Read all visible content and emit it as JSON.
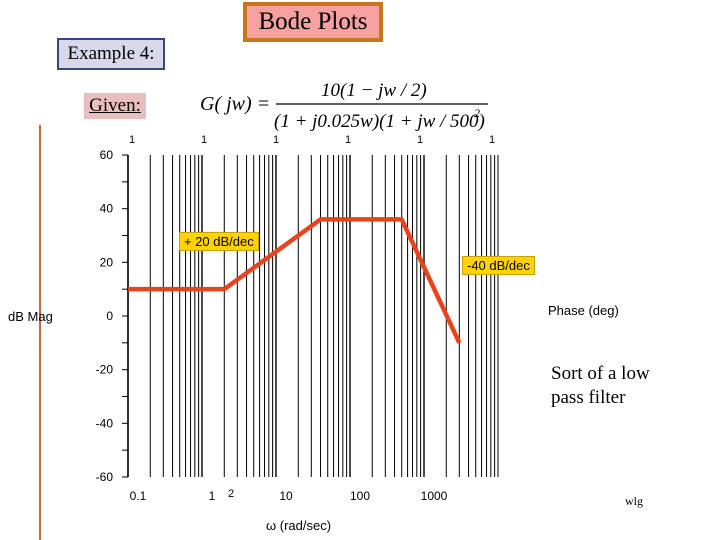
{
  "header": {
    "title": "Bode Plots",
    "example_label": "Example 4:",
    "given_label": "Given:"
  },
  "formula": {
    "lhs": "G( jw) =",
    "numerator": "10(1 − jw / 2)",
    "denominator": "(1 + j0.025w)(1 + jw / 500)",
    "denominator_power": "2"
  },
  "annotations": {
    "slope_up": "+ 20 dB/dec",
    "slope_down": "-40 dB/dec",
    "phase_label": "Phase (deg)",
    "note": "Sort of a low pass filter",
    "author": "wlg",
    "extra_tick": "2"
  },
  "chart_data": {
    "type": "line",
    "x_scale": "log",
    "xlim": [
      0.1,
      10000
    ],
    "ylim": [
      -60,
      60
    ],
    "xlabel": "ω (rad/sec)",
    "ylabel": "dB Mag",
    "x_tick_labels": [
      "0.1",
      "1",
      "10",
      "100",
      "1000"
    ],
    "x_tick_values": [
      0.1,
      1,
      10,
      100,
      1000
    ],
    "y_ticks": [
      60,
      40,
      20,
      0,
      -20,
      -40,
      -60
    ],
    "top_tick_labels": [
      "1",
      "1",
      "1",
      "1",
      "1",
      "1"
    ],
    "grid": true,
    "series": [
      {
        "color": "#e8431c",
        "x": [
          0.1,
          2,
          40,
          500,
          3000
        ],
        "y": [
          10,
          10,
          36,
          36,
          -10
        ]
      }
    ]
  }
}
